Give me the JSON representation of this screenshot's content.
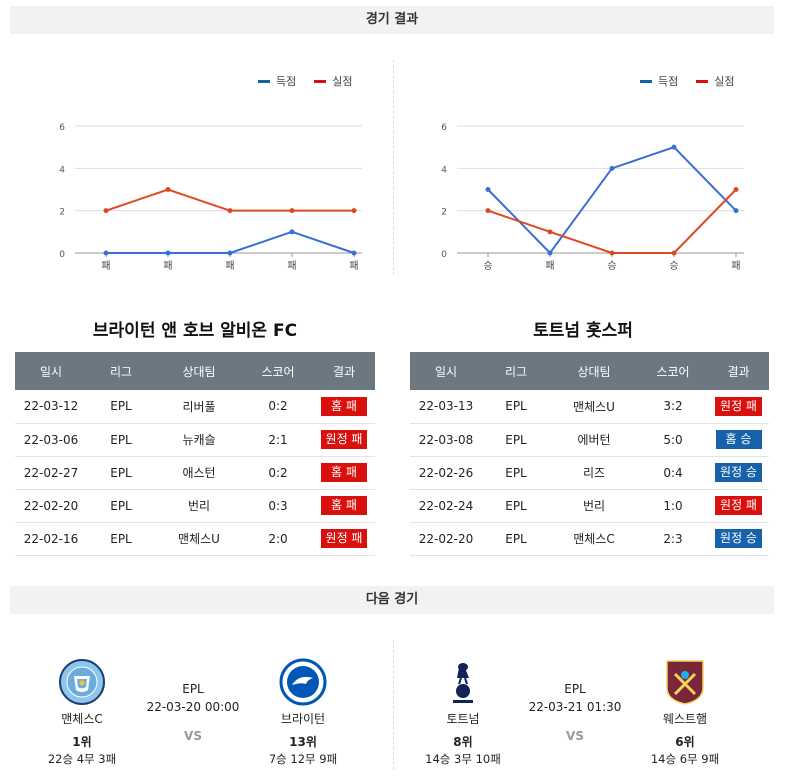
{
  "header_results": "경기 결과",
  "header_next": "다음 경기",
  "legend": {
    "scored": "득점",
    "conceded": "실점"
  },
  "colors": {
    "scored": "#3b6ed6",
    "conceded": "#dc4a25",
    "loss": "#d8110f",
    "win": "#1763ab",
    "table_head": "#6b7781"
  },
  "chart_data": [
    {
      "type": "line",
      "categories": [
        "패",
        "패",
        "패",
        "패",
        "패"
      ],
      "ylim": [
        0,
        6
      ],
      "yticks": [
        "0",
        "2",
        "4",
        "6"
      ],
      "series": [
        {
          "name": "득점",
          "values": [
            0,
            0,
            0,
            1,
            0
          ]
        },
        {
          "name": "실점",
          "values": [
            2,
            3,
            2,
            2,
            2
          ]
        }
      ]
    },
    {
      "type": "line",
      "categories": [
        "승",
        "패",
        "승",
        "승",
        "패"
      ],
      "ylim": [
        0,
        6
      ],
      "yticks": [
        "0",
        "2",
        "4",
        "6"
      ],
      "series": [
        {
          "name": "득점",
          "values": [
            3,
            0,
            4,
            5,
            2
          ]
        },
        {
          "name": "실점",
          "values": [
            2,
            1,
            0,
            0,
            3
          ]
        }
      ]
    }
  ],
  "teams": [
    {
      "title": "브라이턴 앤 호브 알비온 FC",
      "columns": [
        "일시",
        "리그",
        "상대팀",
        "스코어",
        "결과"
      ],
      "rows": [
        {
          "date": "22-03-12",
          "league": "EPL",
          "opponent": "리버풀",
          "score": "0:2",
          "result": "홈 패",
          "type": "loss"
        },
        {
          "date": "22-03-06",
          "league": "EPL",
          "opponent": "뉴캐슬",
          "score": "2:1",
          "result": "원정 패",
          "type": "loss"
        },
        {
          "date": "22-02-27",
          "league": "EPL",
          "opponent": "애스턴",
          "score": "0:2",
          "result": "홈 패",
          "type": "loss"
        },
        {
          "date": "22-02-20",
          "league": "EPL",
          "opponent": "번리",
          "score": "0:3",
          "result": "홈 패",
          "type": "loss"
        },
        {
          "date": "22-02-16",
          "league": "EPL",
          "opponent": "맨체스U",
          "score": "2:0",
          "result": "원정 패",
          "type": "loss"
        }
      ]
    },
    {
      "title": "토트넘 홋스퍼",
      "columns": [
        "일시",
        "리그",
        "상대팀",
        "스코어",
        "결과"
      ],
      "rows": [
        {
          "date": "22-03-13",
          "league": "EPL",
          "opponent": "맨체스U",
          "score": "3:2",
          "result": "원정 패",
          "type": "loss"
        },
        {
          "date": "22-03-08",
          "league": "EPL",
          "opponent": "에버턴",
          "score": "5:0",
          "result": "홈 승",
          "type": "win"
        },
        {
          "date": "22-02-26",
          "league": "EPL",
          "opponent": "리즈",
          "score": "0:4",
          "result": "원정 승",
          "type": "win"
        },
        {
          "date": "22-02-24",
          "league": "EPL",
          "opponent": "번리",
          "score": "1:0",
          "result": "원정 패",
          "type": "loss"
        },
        {
          "date": "22-02-20",
          "league": "EPL",
          "opponent": "맨체스C",
          "score": "2:3",
          "result": "원정 승",
          "type": "win"
        }
      ]
    }
  ],
  "next_matches": [
    {
      "league": "EPL",
      "datetime": "22-03-20 00:00",
      "vs": "VS",
      "home": {
        "name": "맨체스C",
        "rank": "1위",
        "record": "22승 4무 3패",
        "logo": "man-city-logo"
      },
      "away": {
        "name": "브라이턴",
        "rank": "13위",
        "record": "7승 12무 9패",
        "logo": "brighton-logo"
      }
    },
    {
      "league": "EPL",
      "datetime": "22-03-21 01:30",
      "vs": "VS",
      "home": {
        "name": "토트넘",
        "rank": "8위",
        "record": "14승 3무 10패",
        "logo": "tottenham-logo"
      },
      "away": {
        "name": "웨스트햄",
        "rank": "6위",
        "record": "14승 6무 9패",
        "logo": "west-ham-logo"
      }
    }
  ]
}
